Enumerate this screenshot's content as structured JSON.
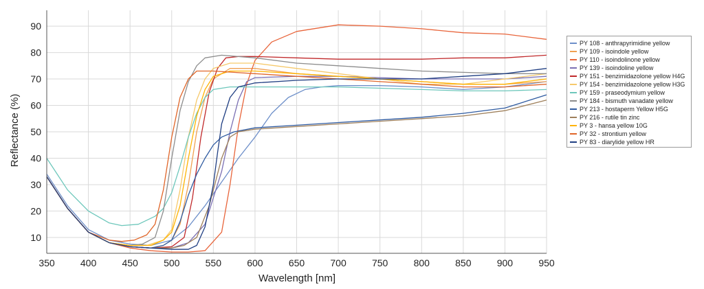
{
  "chart_data": {
    "type": "line",
    "title": "",
    "xlabel": "Wavelength [nm]",
    "ylabel": "Reflectance (%)",
    "xlim": [
      350,
      950
    ],
    "ylim": [
      4,
      96
    ],
    "x_ticks": [
      350,
      400,
      450,
      500,
      550,
      600,
      650,
      700,
      750,
      800,
      850,
      900,
      950
    ],
    "y_ticks": [
      10,
      20,
      30,
      40,
      50,
      60,
      70,
      80,
      90
    ],
    "grid": true,
    "legend_position": "right",
    "series": [
      {
        "name": "PY 108 - anthrapyrimidine yellow",
        "color": "#6d8fc9",
        "points": [
          [
            350,
            34
          ],
          [
            375,
            22
          ],
          [
            400,
            13
          ],
          [
            425,
            9
          ],
          [
            450,
            7.5
          ],
          [
            475,
            7
          ],
          [
            500,
            9
          ],
          [
            520,
            14
          ],
          [
            540,
            22
          ],
          [
            560,
            31
          ],
          [
            580,
            40
          ],
          [
            600,
            48
          ],
          [
            620,
            57
          ],
          [
            640,
            63
          ],
          [
            660,
            66
          ],
          [
            680,
            67
          ],
          [
            700,
            67.5
          ],
          [
            750,
            67.5
          ],
          [
            800,
            67
          ],
          [
            850,
            66
          ],
          [
            900,
            67
          ],
          [
            950,
            69
          ]
        ]
      },
      {
        "name": "PY 109 - isoindole yellow",
        "color": "#f0a050",
        "points": [
          [
            350,
            33
          ],
          [
            375,
            21
          ],
          [
            400,
            12
          ],
          [
            425,
            8
          ],
          [
            450,
            6.5
          ],
          [
            475,
            6
          ],
          [
            490,
            7
          ],
          [
            500,
            9
          ],
          [
            510,
            15
          ],
          [
            520,
            30
          ],
          [
            530,
            50
          ],
          [
            540,
            63
          ],
          [
            550,
            70
          ],
          [
            570,
            74
          ],
          [
            600,
            74
          ],
          [
            650,
            72
          ],
          [
            700,
            71
          ],
          [
            750,
            70
          ],
          [
            800,
            69
          ],
          [
            850,
            68
          ],
          [
            900,
            68
          ],
          [
            950,
            69
          ]
        ]
      },
      {
        "name": "PY 110 - isoindolinone yellow",
        "color": "#e8643a",
        "points": [
          [
            350,
            33
          ],
          [
            375,
            21
          ],
          [
            400,
            12
          ],
          [
            425,
            8
          ],
          [
            450,
            6
          ],
          [
            475,
            5
          ],
          [
            500,
            4.5
          ],
          [
            520,
            4.5
          ],
          [
            540,
            5
          ],
          [
            560,
            12
          ],
          [
            570,
            30
          ],
          [
            580,
            52
          ],
          [
            590,
            68
          ],
          [
            600,
            77
          ],
          [
            620,
            84
          ],
          [
            650,
            88
          ],
          [
            700,
            90.5
          ],
          [
            750,
            90
          ],
          [
            800,
            89
          ],
          [
            850,
            87.5
          ],
          [
            900,
            87
          ],
          [
            950,
            85
          ]
        ]
      },
      {
        "name": "PY 139 - isoindoline yellow",
        "color": "#7a6fb3",
        "points": [
          [
            350,
            33
          ],
          [
            375,
            21
          ],
          [
            400,
            12
          ],
          [
            425,
            8
          ],
          [
            450,
            6.5
          ],
          [
            475,
            6
          ],
          [
            500,
            6
          ],
          [
            520,
            8
          ],
          [
            540,
            15
          ],
          [
            560,
            35
          ],
          [
            570,
            50
          ],
          [
            580,
            62
          ],
          [
            590,
            69
          ],
          [
            600,
            70.5
          ],
          [
            650,
            71
          ],
          [
            700,
            71
          ],
          [
            750,
            70.5
          ],
          [
            800,
            70
          ],
          [
            850,
            70
          ],
          [
            900,
            70
          ],
          [
            950,
            71
          ]
        ]
      },
      {
        "name": "PY 151 - benzimidazolone yellow H4G",
        "color": "#c0282a",
        "points": [
          [
            350,
            33
          ],
          [
            375,
            21
          ],
          [
            400,
            12
          ],
          [
            425,
            8
          ],
          [
            450,
            6.5
          ],
          [
            475,
            6
          ],
          [
            500,
            6.5
          ],
          [
            515,
            10
          ],
          [
            525,
            25
          ],
          [
            535,
            48
          ],
          [
            545,
            65
          ],
          [
            555,
            74
          ],
          [
            565,
            78
          ],
          [
            580,
            78.5
          ],
          [
            600,
            78.5
          ],
          [
            650,
            78
          ],
          [
            700,
            77.5
          ],
          [
            750,
            77.5
          ],
          [
            800,
            77.5
          ],
          [
            850,
            78
          ],
          [
            900,
            78
          ],
          [
            950,
            79
          ]
        ]
      },
      {
        "name": "PY 154 - benzimidazolone yellow H3G",
        "color": "#f6c96b",
        "points": [
          [
            350,
            33
          ],
          [
            375,
            21
          ],
          [
            400,
            12
          ],
          [
            425,
            8
          ],
          [
            450,
            7
          ],
          [
            470,
            7
          ],
          [
            490,
            9
          ],
          [
            500,
            13
          ],
          [
            510,
            28
          ],
          [
            520,
            48
          ],
          [
            530,
            62
          ],
          [
            540,
            70
          ],
          [
            550,
            74
          ],
          [
            570,
            76
          ],
          [
            600,
            76
          ],
          [
            650,
            74
          ],
          [
            700,
            72
          ],
          [
            750,
            70
          ],
          [
            800,
            68
          ],
          [
            850,
            68
          ],
          [
            900,
            70
          ],
          [
            950,
            72
          ]
        ]
      },
      {
        "name": "PY 159 - praseodymium yellow",
        "color": "#6dc7bb",
        "points": [
          [
            350,
            40
          ],
          [
            375,
            28
          ],
          [
            400,
            20
          ],
          [
            425,
            15.5
          ],
          [
            440,
            14.5
          ],
          [
            460,
            15
          ],
          [
            480,
            18
          ],
          [
            490,
            21
          ],
          [
            500,
            27
          ],
          [
            510,
            37
          ],
          [
            520,
            48
          ],
          [
            530,
            57
          ],
          [
            540,
            63
          ],
          [
            550,
            66
          ],
          [
            570,
            67
          ],
          [
            600,
            67
          ],
          [
            650,
            67
          ],
          [
            700,
            67
          ],
          [
            750,
            66.5
          ],
          [
            800,
            66
          ],
          [
            850,
            65.5
          ],
          [
            900,
            65.5
          ],
          [
            950,
            66
          ]
        ]
      },
      {
        "name": "PY 184 - bismuth vanadate yellow",
        "color": "#8c8c8c",
        "points": [
          [
            350,
            33
          ],
          [
            375,
            21
          ],
          [
            400,
            12
          ],
          [
            425,
            8
          ],
          [
            450,
            7
          ],
          [
            465,
            7.5
          ],
          [
            480,
            10
          ],
          [
            490,
            20
          ],
          [
            500,
            40
          ],
          [
            510,
            58
          ],
          [
            520,
            69
          ],
          [
            530,
            75
          ],
          [
            540,
            78
          ],
          [
            560,
            79
          ],
          [
            600,
            78
          ],
          [
            650,
            76
          ],
          [
            700,
            75
          ],
          [
            750,
            74
          ],
          [
            800,
            73
          ],
          [
            850,
            72.5
          ],
          [
            900,
            72
          ],
          [
            950,
            72
          ]
        ]
      },
      {
        "name": "PY 213 - hostaperm Yellow H5G",
        "color": "#2e5aa0",
        "points": [
          [
            350,
            33
          ],
          [
            375,
            21
          ],
          [
            400,
            12
          ],
          [
            425,
            8
          ],
          [
            450,
            6.5
          ],
          [
            475,
            6
          ],
          [
            490,
            7
          ],
          [
            500,
            9
          ],
          [
            510,
            16
          ],
          [
            520,
            26
          ],
          [
            530,
            34
          ],
          [
            540,
            40
          ],
          [
            550,
            45
          ],
          [
            560,
            48
          ],
          [
            575,
            50
          ],
          [
            600,
            51.5
          ],
          [
            650,
            52.5
          ],
          [
            700,
            53.5
          ],
          [
            750,
            54.5
          ],
          [
            800,
            55.5
          ],
          [
            850,
            57
          ],
          [
            900,
            59
          ],
          [
            950,
            64
          ]
        ]
      },
      {
        "name": "PY 216 - rutile tin zinc",
        "color": "#9e7f5a",
        "points": [
          [
            350,
            33
          ],
          [
            375,
            21
          ],
          [
            400,
            12
          ],
          [
            425,
            8
          ],
          [
            450,
            6.5
          ],
          [
            475,
            6
          ],
          [
            500,
            6
          ],
          [
            515,
            7
          ],
          [
            530,
            10
          ],
          [
            545,
            22
          ],
          [
            560,
            40
          ],
          [
            570,
            48
          ],
          [
            580,
            50
          ],
          [
            600,
            51
          ],
          [
            650,
            52
          ],
          [
            700,
            53
          ],
          [
            750,
            54
          ],
          [
            800,
            55
          ],
          [
            850,
            56
          ],
          [
            900,
            58
          ],
          [
            950,
            62
          ]
        ]
      },
      {
        "name": "PY 3 - hansa yellow 10G",
        "color": "#ffb300",
        "points": [
          [
            350,
            33
          ],
          [
            375,
            21
          ],
          [
            400,
            12
          ],
          [
            425,
            8
          ],
          [
            450,
            7
          ],
          [
            475,
            7
          ],
          [
            490,
            9
          ],
          [
            500,
            12
          ],
          [
            510,
            22
          ],
          [
            520,
            40
          ],
          [
            530,
            56
          ],
          [
            540,
            66
          ],
          [
            550,
            71
          ],
          [
            570,
            73
          ],
          [
            600,
            73
          ],
          [
            650,
            72
          ],
          [
            700,
            71
          ],
          [
            750,
            70
          ],
          [
            800,
            69
          ],
          [
            850,
            68
          ],
          [
            900,
            68
          ],
          [
            950,
            70
          ]
        ]
      },
      {
        "name": "PY 32 - strontium yellow",
        "color": "#e06528",
        "points": [
          [
            350,
            33
          ],
          [
            375,
            21
          ],
          [
            400,
            12
          ],
          [
            425,
            9
          ],
          [
            440,
            8.5
          ],
          [
            455,
            9
          ],
          [
            470,
            11
          ],
          [
            480,
            15
          ],
          [
            490,
            28
          ],
          [
            500,
            48
          ],
          [
            510,
            63
          ],
          [
            520,
            70
          ],
          [
            530,
            73
          ],
          [
            550,
            73
          ],
          [
            600,
            72
          ],
          [
            650,
            71
          ],
          [
            700,
            70
          ],
          [
            750,
            69
          ],
          [
            800,
            68
          ],
          [
            850,
            67
          ],
          [
            900,
            67
          ],
          [
            950,
            68
          ]
        ]
      },
      {
        "name": "PY 83 - diarylide yellow HR",
        "color": "#1f3e82",
        "points": [
          [
            350,
            33
          ],
          [
            375,
            21
          ],
          [
            400,
            12
          ],
          [
            425,
            8
          ],
          [
            450,
            6.5
          ],
          [
            475,
            6
          ],
          [
            500,
            5.5
          ],
          [
            520,
            5.5
          ],
          [
            530,
            7
          ],
          [
            540,
            14
          ],
          [
            550,
            30
          ],
          [
            555,
            42
          ],
          [
            560,
            53
          ],
          [
            570,
            63
          ],
          [
            580,
            67
          ],
          [
            600,
            68.5
          ],
          [
            650,
            69.5
          ],
          [
            700,
            70
          ],
          [
            750,
            70
          ],
          [
            800,
            70
          ],
          [
            850,
            71
          ],
          [
            900,
            72
          ],
          [
            950,
            74
          ]
        ]
      }
    ]
  }
}
